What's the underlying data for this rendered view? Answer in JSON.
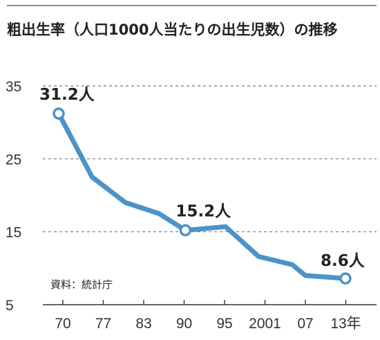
{
  "chart_data": {
    "type": "line",
    "title": "粗出生率（人口1000人当たりの出生児数）の推移",
    "source": "資料：統計庁",
    "x_ticks": [
      "70",
      "77",
      "83",
      "90",
      "95",
      "2001",
      "07",
      "13年"
    ],
    "y_ticks": [
      "35",
      "25",
      "15",
      "5"
    ],
    "ylim": [
      5,
      35
    ],
    "xlim": [
      1970,
      2013
    ],
    "grid": true,
    "x": [
      1970,
      1975,
      1980,
      1985,
      1989,
      1995,
      2000,
      2005,
      2007,
      2013
    ],
    "values": [
      31.2,
      22.5,
      19.0,
      17.5,
      15.2,
      15.7,
      11.6,
      10.5,
      9.0,
      8.6
    ],
    "annotations": [
      {
        "x": 1970,
        "y": 31.2,
        "label": "31.2人"
      },
      {
        "x": 1989,
        "y": 15.2,
        "label": "15.2人"
      },
      {
        "x": 2013,
        "y": 8.6,
        "label": "8.6人"
      }
    ],
    "colors": {
      "line": "#4b93c8",
      "grid": "#777777",
      "axis": "#333333"
    }
  }
}
